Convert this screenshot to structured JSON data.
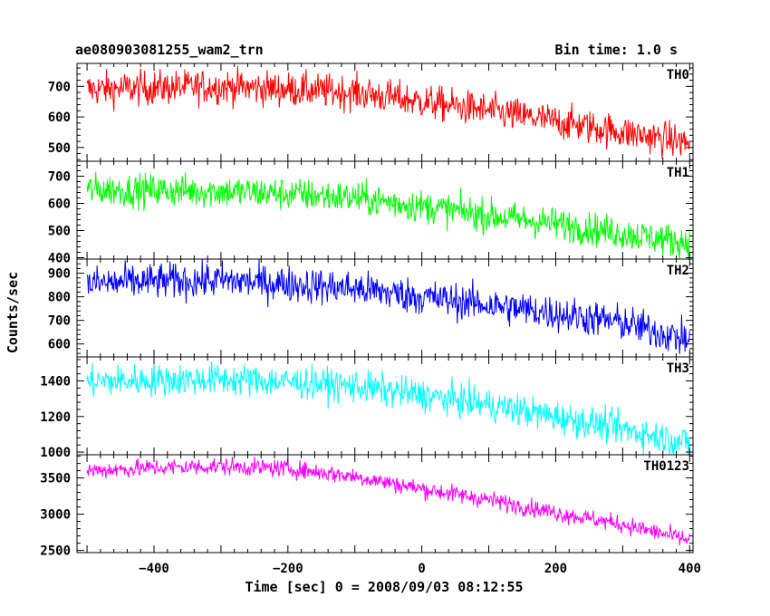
{
  "header": {
    "title": "ae080903081255_wam2_trn",
    "bin_time": "Bin time: 1.0 s"
  },
  "chart_data": {
    "type": "line",
    "xlabel": "Time [sec] 0 = 2008/09/03 08:12:55",
    "ylabel": "Counts/sec",
    "xlim": [
      -515,
      405
    ],
    "x_ticks": [
      -400,
      -200,
      0,
      200,
      400
    ],
    "x_step": 1,
    "panels": [
      {
        "name": "TH0",
        "color": "#ff0000",
        "ylim": [
          455,
          775
        ],
        "y_ticks": [
          500,
          600,
          700
        ],
        "trend": [
          [
            -500,
            690
          ],
          [
            -300,
            700
          ],
          [
            -200,
            690
          ],
          [
            -100,
            680
          ],
          [
            0,
            650
          ],
          [
            100,
            620
          ],
          [
            200,
            585
          ],
          [
            300,
            550
          ],
          [
            400,
            515
          ]
        ],
        "noise": 28
      },
      {
        "name": "TH1",
        "color": "#00ff00",
        "ylim": [
          395,
          755
        ],
        "y_ticks": [
          400,
          500,
          600,
          700
        ],
        "trend": [
          [
            -500,
            650
          ],
          [
            -300,
            645
          ],
          [
            -200,
            635
          ],
          [
            -100,
            620
          ],
          [
            0,
            590
          ],
          [
            100,
            555
          ],
          [
            200,
            525
          ],
          [
            300,
            490
          ],
          [
            400,
            455
          ]
        ],
        "noise": 30
      },
      {
        "name": "TH2",
        "color": "#0000ff",
        "ylim": [
          545,
          960
        ],
        "y_ticks": [
          600,
          700,
          800,
          900
        ],
        "trend": [
          [
            -500,
            855
          ],
          [
            -400,
            865
          ],
          [
            -300,
            870
          ],
          [
            -200,
            855
          ],
          [
            -100,
            835
          ],
          [
            0,
            800
          ],
          [
            100,
            765
          ],
          [
            200,
            730
          ],
          [
            300,
            690
          ],
          [
            400,
            615
          ]
        ],
        "noise": 38
      },
      {
        "name": "TH3",
        "color": "#00ffff",
        "ylim": [
          985,
          1535
        ],
        "y_ticks": [
          1000,
          1200,
          1400
        ],
        "trend": [
          [
            -500,
            1395
          ],
          [
            -400,
            1405
          ],
          [
            -300,
            1410
          ],
          [
            -200,
            1395
          ],
          [
            -100,
            1370
          ],
          [
            0,
            1320
          ],
          [
            100,
            1265
          ],
          [
            200,
            1200
          ],
          [
            300,
            1130
          ],
          [
            400,
            1050
          ]
        ],
        "noise": 45
      },
      {
        "name": "TH0123",
        "color": "#ff00ff",
        "ylim": [
          2470,
          3820
        ],
        "y_ticks": [
          2500,
          3000,
          3500
        ],
        "trend": [
          [
            -500,
            3600
          ],
          [
            -400,
            3640
          ],
          [
            -300,
            3660
          ],
          [
            -200,
            3630
          ],
          [
            -100,
            3520
          ],
          [
            0,
            3350
          ],
          [
            100,
            3200
          ],
          [
            200,
            3020
          ],
          [
            300,
            2860
          ],
          [
            400,
            2640
          ]
        ],
        "noise": 60
      }
    ]
  }
}
